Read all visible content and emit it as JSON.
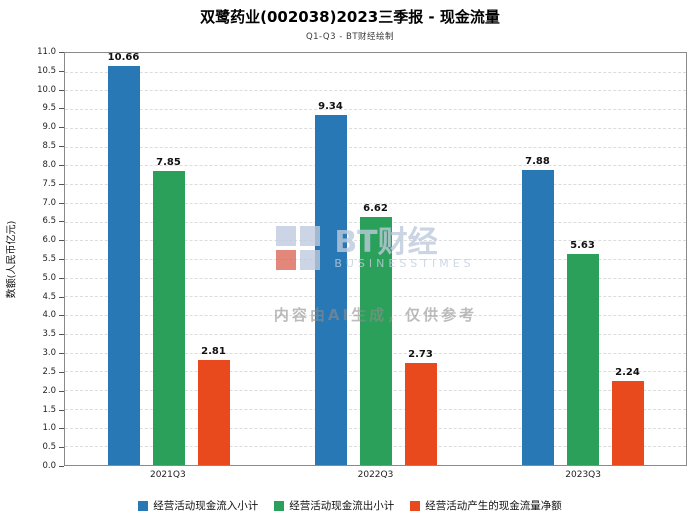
{
  "header": {
    "title": "双鹭药业(002038)2023三季报 - 现金流量",
    "subtitle": "Q1-Q3 - BT财经绘制"
  },
  "watermark": {
    "brand": "BT财经",
    "brand_sub": "BUSINESSTIMES",
    "disclaimer": "内容由AI生成，仅供参考"
  },
  "chart_data": {
    "type": "bar",
    "title": "双鹭药业(002038)2023三季报 - 现金流量",
    "subtitle": "Q1-Q3 - BT财经绘制",
    "categories": [
      "2021Q3",
      "2022Q3",
      "2023Q3"
    ],
    "series": [
      {
        "name": "经营活动现金流入小计",
        "color": "#2878b5",
        "values": [
          10.66,
          9.34,
          7.88
        ]
      },
      {
        "name": "经营活动现金流出小计",
        "color": "#2ba05a",
        "values": [
          7.85,
          6.62,
          5.63
        ]
      },
      {
        "name": "经营活动产生的现金流量净额",
        "color": "#e8491d",
        "values": [
          2.81,
          2.73,
          2.24
        ]
      }
    ],
    "xlabel": "",
    "ylabel": "数额(人民币亿元)",
    "ylim": [
      0,
      11.0
    ],
    "ytick_step": 0.5,
    "grid": true,
    "legend_position": "bottom",
    "value_label_decimals": 2
  }
}
